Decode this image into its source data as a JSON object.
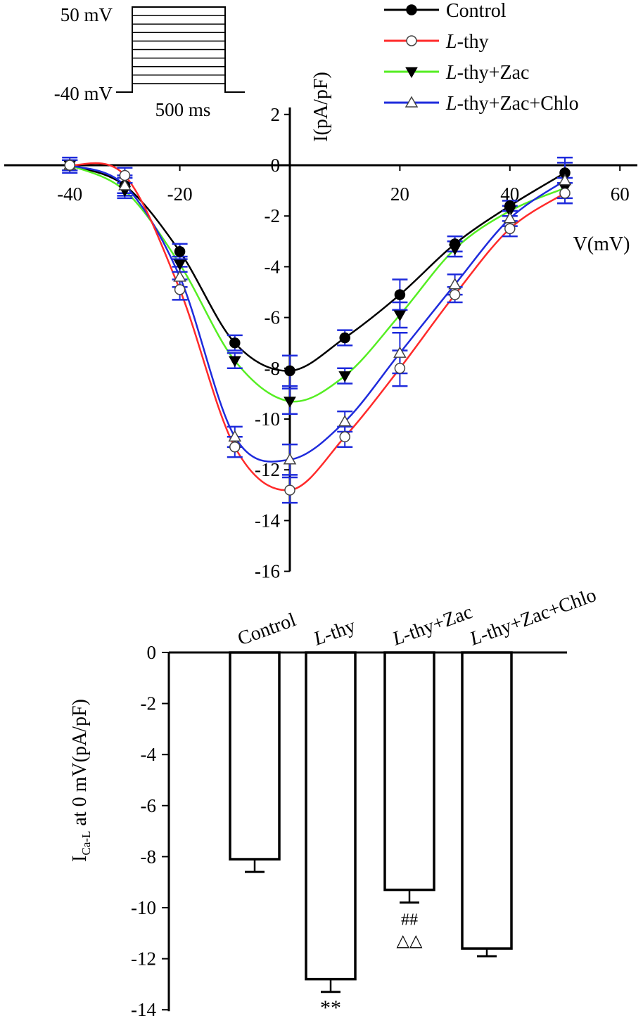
{
  "protocol": {
    "top_label": "50 mV",
    "bottom_label": "-40 mV",
    "duration_label": "500 ms",
    "steps": 10
  },
  "chart_data": [
    {
      "type": "line",
      "xlabel": "V(mV)",
      "ylabel": "I(pA/pF)",
      "xlim": [
        -40,
        60
      ],
      "ylim": [
        -16,
        2
      ],
      "xticks": [
        -40,
        -20,
        0,
        20,
        40,
        60
      ],
      "yticks": [
        2,
        0,
        -2,
        -4,
        -6,
        -8,
        -10,
        -12,
        -14,
        -16
      ],
      "legend_position": "top-right",
      "x": [
        -40,
        -30,
        -20,
        -10,
        0,
        10,
        20,
        30,
        40,
        50
      ],
      "series": [
        {
          "name": "Control",
          "name_prefix": "",
          "name_main": "Control",
          "color": "#000000",
          "marker": "filled-circle",
          "values": [
            0.0,
            -0.8,
            -3.4,
            -7.0,
            -8.1,
            -6.8,
            -5.1,
            -3.1,
            -1.6,
            -0.3
          ],
          "errors": [
            0.2,
            0.3,
            0.3,
            0.3,
            0.6,
            0.3,
            0.6,
            0.3,
            0.2,
            0.4
          ]
        },
        {
          "name": "L-thy",
          "name_prefix": "L",
          "name_main": "-thy",
          "color": "#ff2a2a",
          "marker": "open-circle",
          "values": [
            0.0,
            -0.4,
            -4.9,
            -11.1,
            -12.8,
            -10.7,
            -8.0,
            -5.1,
            -2.5,
            -1.1
          ],
          "errors": [
            0.2,
            0.3,
            0.4,
            0.4,
            0.5,
            0.4,
            0.7,
            0.3,
            0.3,
            0.4
          ]
        },
        {
          "name": "L-thy+Zac",
          "name_prefix": "L",
          "name_main": "-thy+Zac",
          "color": "#55ee22",
          "marker": "filled-triangle-down",
          "values": [
            0.0,
            -1.0,
            -3.9,
            -7.7,
            -9.3,
            -8.3,
            -5.9,
            -3.3,
            -1.8,
            -0.9
          ],
          "errors": [
            0.2,
            0.3,
            0.3,
            0.3,
            0.5,
            0.3,
            0.5,
            0.3,
            0.2,
            0.4
          ]
        },
        {
          "name": "L-thy+Zac+Chlo",
          "name_prefix": "L",
          "name_main": "-thy+Zac+Chlo",
          "color": "#1e2bdc",
          "marker": "open-triangle-up",
          "values": [
            0.0,
            -0.8,
            -4.4,
            -10.7,
            -11.6,
            -10.1,
            -7.4,
            -4.7,
            -2.1,
            -0.6
          ],
          "errors": [
            0.3,
            0.4,
            0.4,
            0.4,
            0.6,
            0.4,
            0.8,
            0.4,
            0.3,
            0.9
          ]
        }
      ]
    },
    {
      "type": "bar",
      "ylabel_main": "I",
      "ylabel_sub": "Ca-L",
      "ylabel_rest": " at 0 mV(pA/pF)",
      "ylim": [
        -14,
        0
      ],
      "yticks": [
        0,
        -2,
        -4,
        -6,
        -8,
        -10,
        -12,
        -14
      ],
      "categories": [
        {
          "label": "Control",
          "prefix": "",
          "main": "Control"
        },
        {
          "label": "L-thy",
          "prefix": "L",
          "main": "-thy"
        },
        {
          "label": "L-thy+Zac",
          "prefix": "L",
          "main": "-thy+Zac"
        },
        {
          "label": "L-thy+Zac+Chlo",
          "prefix": "L",
          "main": "-thy+Zac+Chlo"
        }
      ],
      "values": [
        -8.1,
        -12.8,
        -9.3,
        -11.6
      ],
      "errors": [
        0.5,
        0.5,
        0.5,
        0.3
      ],
      "annotations": [
        {
          "category": 1,
          "lines": [
            "**"
          ]
        },
        {
          "category": 2,
          "lines": [
            "##",
            "△△"
          ]
        }
      ]
    }
  ]
}
